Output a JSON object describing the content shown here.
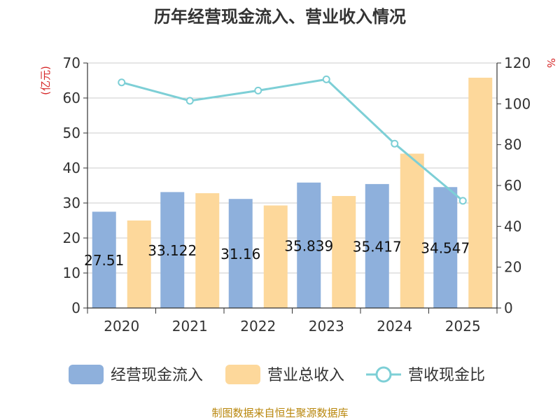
{
  "chart_data": {
    "type": "bar",
    "title": "历年经营现金流入、营业收入情况",
    "categories": [
      "2020",
      "2021",
      "2022",
      "2023",
      "2024",
      "2025"
    ],
    "series": [
      {
        "name": "经营现金流入",
        "type": "bar",
        "axis": "left",
        "color": "#8eb0dc",
        "values": [
          27.51,
          33.122,
          31.16,
          35.839,
          35.417,
          34.547
        ],
        "labels": [
          "27.51",
          "33.122",
          "31.16",
          "35.839",
          "35.417",
          "34.547"
        ]
      },
      {
        "name": "营业总收入",
        "type": "bar",
        "axis": "left",
        "color": "#fdd89b",
        "values": [
          25.0,
          32.8,
          29.3,
          32.0,
          44.1,
          65.8
        ]
      },
      {
        "name": "营收现金比",
        "type": "line",
        "axis": "right",
        "color": "#7dcfd6",
        "values": [
          110.5,
          101.5,
          106.5,
          112.0,
          80.5,
          52.5
        ]
      }
    ],
    "y_left": {
      "unit": "(亿元)",
      "min": 0,
      "max": 70,
      "ticks": [
        0,
        10,
        20,
        30,
        40,
        50,
        60,
        70
      ]
    },
    "y_right": {
      "unit": "%",
      "min": 0,
      "max": 120,
      "ticks": [
        0,
        20,
        40,
        60,
        80,
        100,
        120
      ]
    },
    "legend_position": "bottom",
    "grid": true
  },
  "source": "制图数据来自恒生聚源数据库"
}
